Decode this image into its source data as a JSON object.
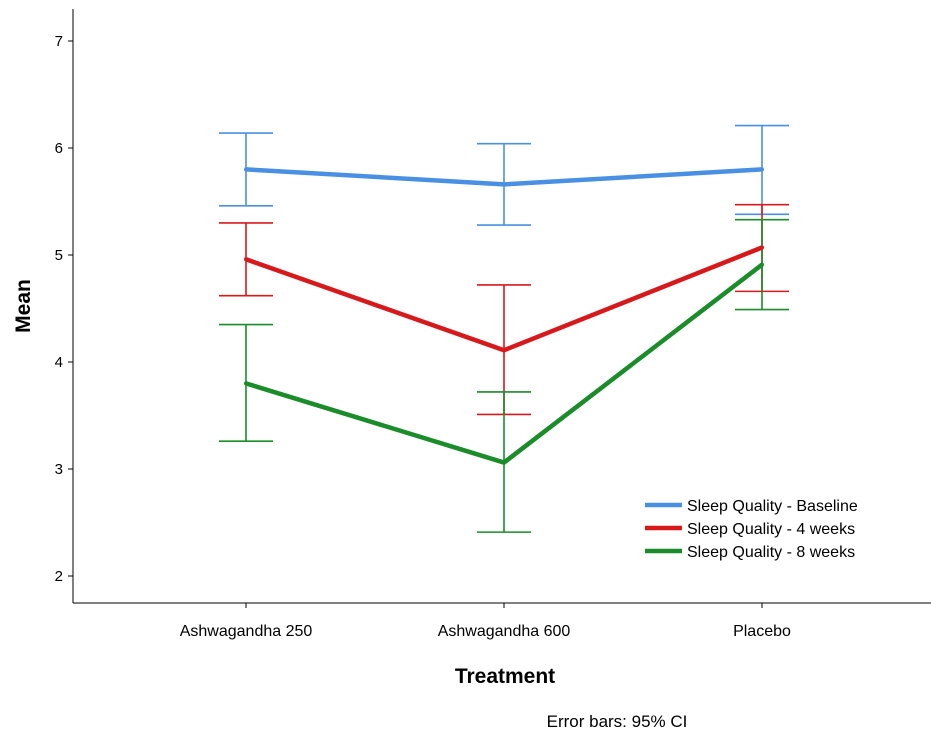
{
  "chart_data": {
    "type": "line",
    "title": "",
    "xlabel": "Treatment",
    "ylabel": "Mean",
    "footnote": "Error bars: 95% CI",
    "categories": [
      "Ashwagandha 250",
      "Ashwagandha 600",
      "Placebo"
    ],
    "ylim": [
      1.75,
      7.3
    ],
    "yticks": [
      "2",
      "3",
      "4",
      "5",
      "6",
      "7"
    ],
    "grid": false,
    "legend_position": "bottom-right",
    "series": [
      {
        "name": "Sleep Quality - Baseline",
        "color": "#4a90e2",
        "values": [
          5.8,
          5.66,
          5.8
        ],
        "ci_low": [
          5.46,
          5.28,
          5.38
        ],
        "ci_high": [
          6.14,
          6.04,
          6.21
        ]
      },
      {
        "name": "Sleep Quality - 4 weeks",
        "color": "#d7191c",
        "values": [
          4.96,
          4.11,
          5.07
        ],
        "ci_low": [
          4.62,
          3.51,
          4.66
        ],
        "ci_high": [
          5.3,
          4.72,
          5.47
        ]
      },
      {
        "name": "Sleep Quality - 8 weeks",
        "color": "#1a8c2a",
        "values": [
          3.8,
          3.06,
          4.91
        ],
        "ci_low": [
          3.26,
          2.41,
          4.49
        ],
        "ci_high": [
          4.35,
          3.72,
          5.33
        ]
      }
    ]
  }
}
